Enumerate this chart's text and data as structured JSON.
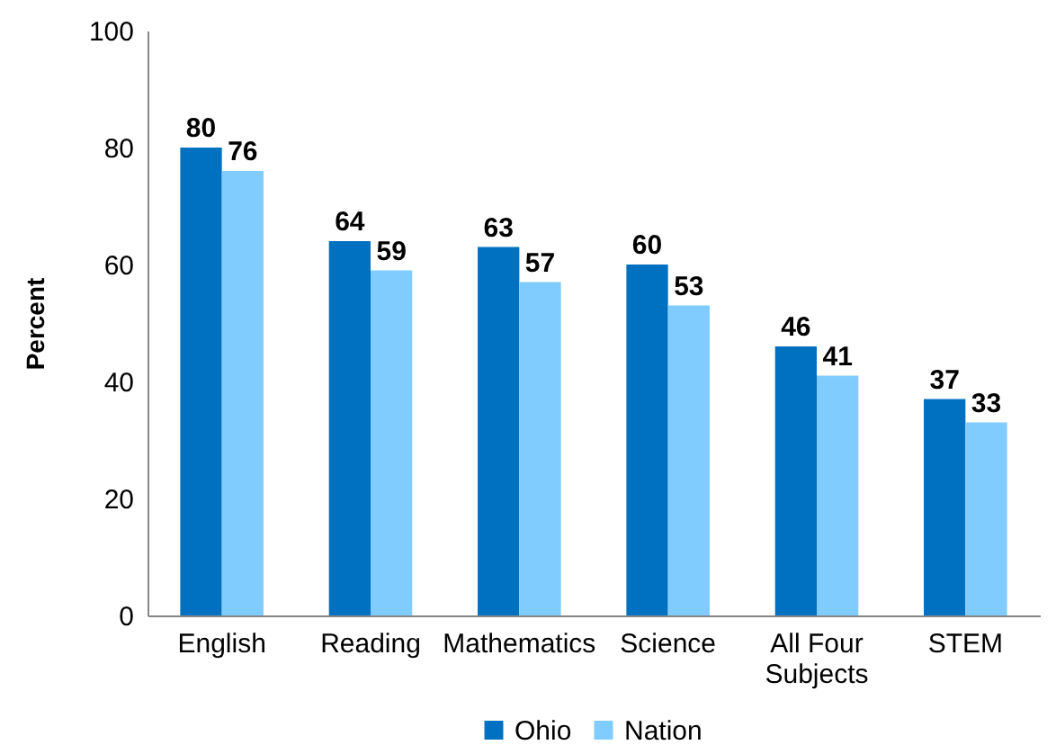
{
  "chart_data": {
    "type": "bar",
    "ylabel": "Percent",
    "categories": [
      "English",
      "Reading",
      "Mathematics",
      "Science",
      "All Four Subjects",
      "STEM"
    ],
    "series": [
      {
        "name": "Ohio",
        "color": "#0070c0",
        "values": [
          80,
          64,
          63,
          60,
          46,
          37
        ]
      },
      {
        "name": "Nation",
        "color": "#80ccff",
        "values": [
          76,
          59,
          57,
          53,
          41,
          33
        ]
      }
    ],
    "ylim": [
      0,
      100
    ],
    "yticks": [
      0,
      20,
      40,
      60,
      80,
      100
    ],
    "data_labels": true,
    "legend": "bottom"
  }
}
